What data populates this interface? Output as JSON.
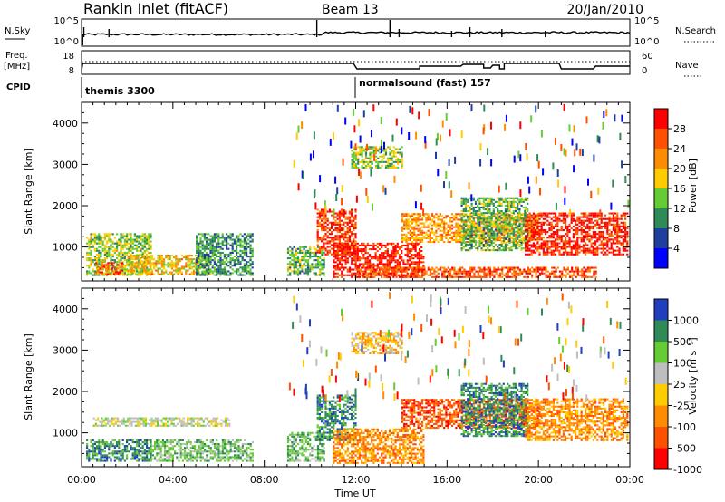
{
  "header": {
    "site": "Rankin Inlet (fitACF)",
    "beam": "Beam 13",
    "date": "20/Jan/2010"
  },
  "sky_panel": {
    "left_label": "N.Sky",
    "right_label": "N.Search",
    "left_ticks": [
      "10^5",
      "10^0"
    ],
    "right_ticks": [
      "10^5",
      "10^0"
    ]
  },
  "freq_panel": {
    "left_label_1": "Freq.",
    "left_label_2": "[MHz]",
    "right_label": "Nave",
    "left_ticks": [
      "18",
      "8"
    ],
    "right_ticks": [
      "60",
      "0"
    ]
  },
  "cpid": {
    "label": "CPID",
    "segments": [
      {
        "start": "00:00",
        "name": "themis 3300"
      },
      {
        "start": "12:00",
        "name": "normalsound (fast) 157"
      }
    ]
  },
  "colors": {
    "power": [
      "#0000ff",
      "#1f3f9f",
      "#2e8b57",
      "#66cc33",
      "#ffcc00",
      "#ff8c00",
      "#ff5000",
      "#ff0000"
    ],
    "velocity": [
      "#1f3fbf",
      "#2e8b57",
      "#66cc33",
      "#bebebe",
      "#ffcc00",
      "#ff8c00",
      "#ff5000",
      "#ff0000"
    ]
  },
  "chart_data": [
    {
      "type": "heatmap",
      "quantity": "power",
      "ylabel": "Slant Range [km]",
      "xlabel": "Time UT",
      "xlim": [
        "00:00",
        "24:00"
      ],
      "ylim": [
        180,
        4500
      ],
      "x_ticks": [
        "00:00",
        "04:00",
        "08:00",
        "12:00",
        "16:00",
        "20:00",
        "00:00"
      ],
      "y_ticks": [
        1000,
        2000,
        3000,
        4000
      ],
      "colorbar": {
        "label": "Power [dB]",
        "ticks": [
          "4",
          "8",
          "12",
          "16",
          "20",
          "24",
          "28"
        ],
        "range": [
          0,
          30
        ]
      },
      "regions": [
        {
          "t": [
            0.2,
            3.0
          ],
          "r": [
            300,
            1300
          ],
          "level": 14
        },
        {
          "t": [
            0.6,
            1.8
          ],
          "r": [
            320,
            620
          ],
          "level": 24
        },
        {
          "t": [
            2.0,
            5.6
          ],
          "r": [
            320,
            800
          ],
          "level": 18
        },
        {
          "t": [
            5.0,
            7.5
          ],
          "r": [
            300,
            1300
          ],
          "level": 10
        },
        {
          "t": [
            9.0,
            10.6
          ],
          "r": [
            300,
            1000
          ],
          "level": 12
        },
        {
          "t": [
            10.3,
            12.0
          ],
          "r": [
            800,
            1900
          ],
          "level": 26
        },
        {
          "t": [
            11.0,
            15.0
          ],
          "r": [
            250,
            1100
          ],
          "level": 28
        },
        {
          "t": [
            11.8,
            14.0
          ],
          "r": [
            2900,
            3400
          ],
          "level": 14
        },
        {
          "t": [
            12.0,
            22.5
          ],
          "r": [
            250,
            520
          ],
          "level": 24
        },
        {
          "t": [
            14.0,
            20.0
          ],
          "r": [
            1100,
            1800
          ],
          "level": 20
        },
        {
          "t": [
            16.6,
            19.5
          ],
          "r": [
            900,
            2200
          ],
          "level": 12
        },
        {
          "t": [
            19.4,
            23.9
          ],
          "r": [
            800,
            1800
          ],
          "level": 27
        }
      ]
    },
    {
      "type": "heatmap",
      "quantity": "velocity",
      "ylabel": "Slant Range [km]",
      "xlabel": "Time UT",
      "xlim": [
        "00:00",
        "24:00"
      ],
      "ylim": [
        180,
        4500
      ],
      "x_ticks": [
        "00:00",
        "04:00",
        "08:00",
        "12:00",
        "16:00",
        "20:00",
        "00:00"
      ],
      "y_ticks": [
        1000,
        2000,
        3000,
        4000
      ],
      "colorbar": {
        "label": "Velocity [m s⁻¹]",
        "ticks": [
          "1000",
          "500",
          "100",
          "25",
          "-25",
          "-100",
          "-500",
          "-1000"
        ]
      },
      "regions": [
        {
          "t": [
            0.2,
            3.0
          ],
          "r": [
            300,
            800
          ],
          "level": 1
        },
        {
          "t": [
            0.5,
            6.5
          ],
          "r": [
            1150,
            1350
          ],
          "level": 3
        },
        {
          "t": [
            3.0,
            7.5
          ],
          "r": [
            300,
            800
          ],
          "level": 2
        },
        {
          "t": [
            9.0,
            10.6
          ],
          "r": [
            300,
            1000
          ],
          "level": 2
        },
        {
          "t": [
            10.3,
            12.0
          ],
          "r": [
            800,
            1900
          ],
          "level": 1
        },
        {
          "t": [
            11.0,
            15.0
          ],
          "r": [
            250,
            1100
          ],
          "level": 5
        },
        {
          "t": [
            11.8,
            14.0
          ],
          "r": [
            2900,
            3400
          ],
          "level": 4
        },
        {
          "t": [
            14.0,
            20.0
          ],
          "r": [
            1100,
            1800
          ],
          "level": 6
        },
        {
          "t": [
            16.6,
            19.5
          ],
          "r": [
            900,
            2200
          ],
          "level": 1
        },
        {
          "t": [
            19.4,
            23.9
          ],
          "r": [
            800,
            1800
          ],
          "level": 5
        }
      ]
    }
  ]
}
